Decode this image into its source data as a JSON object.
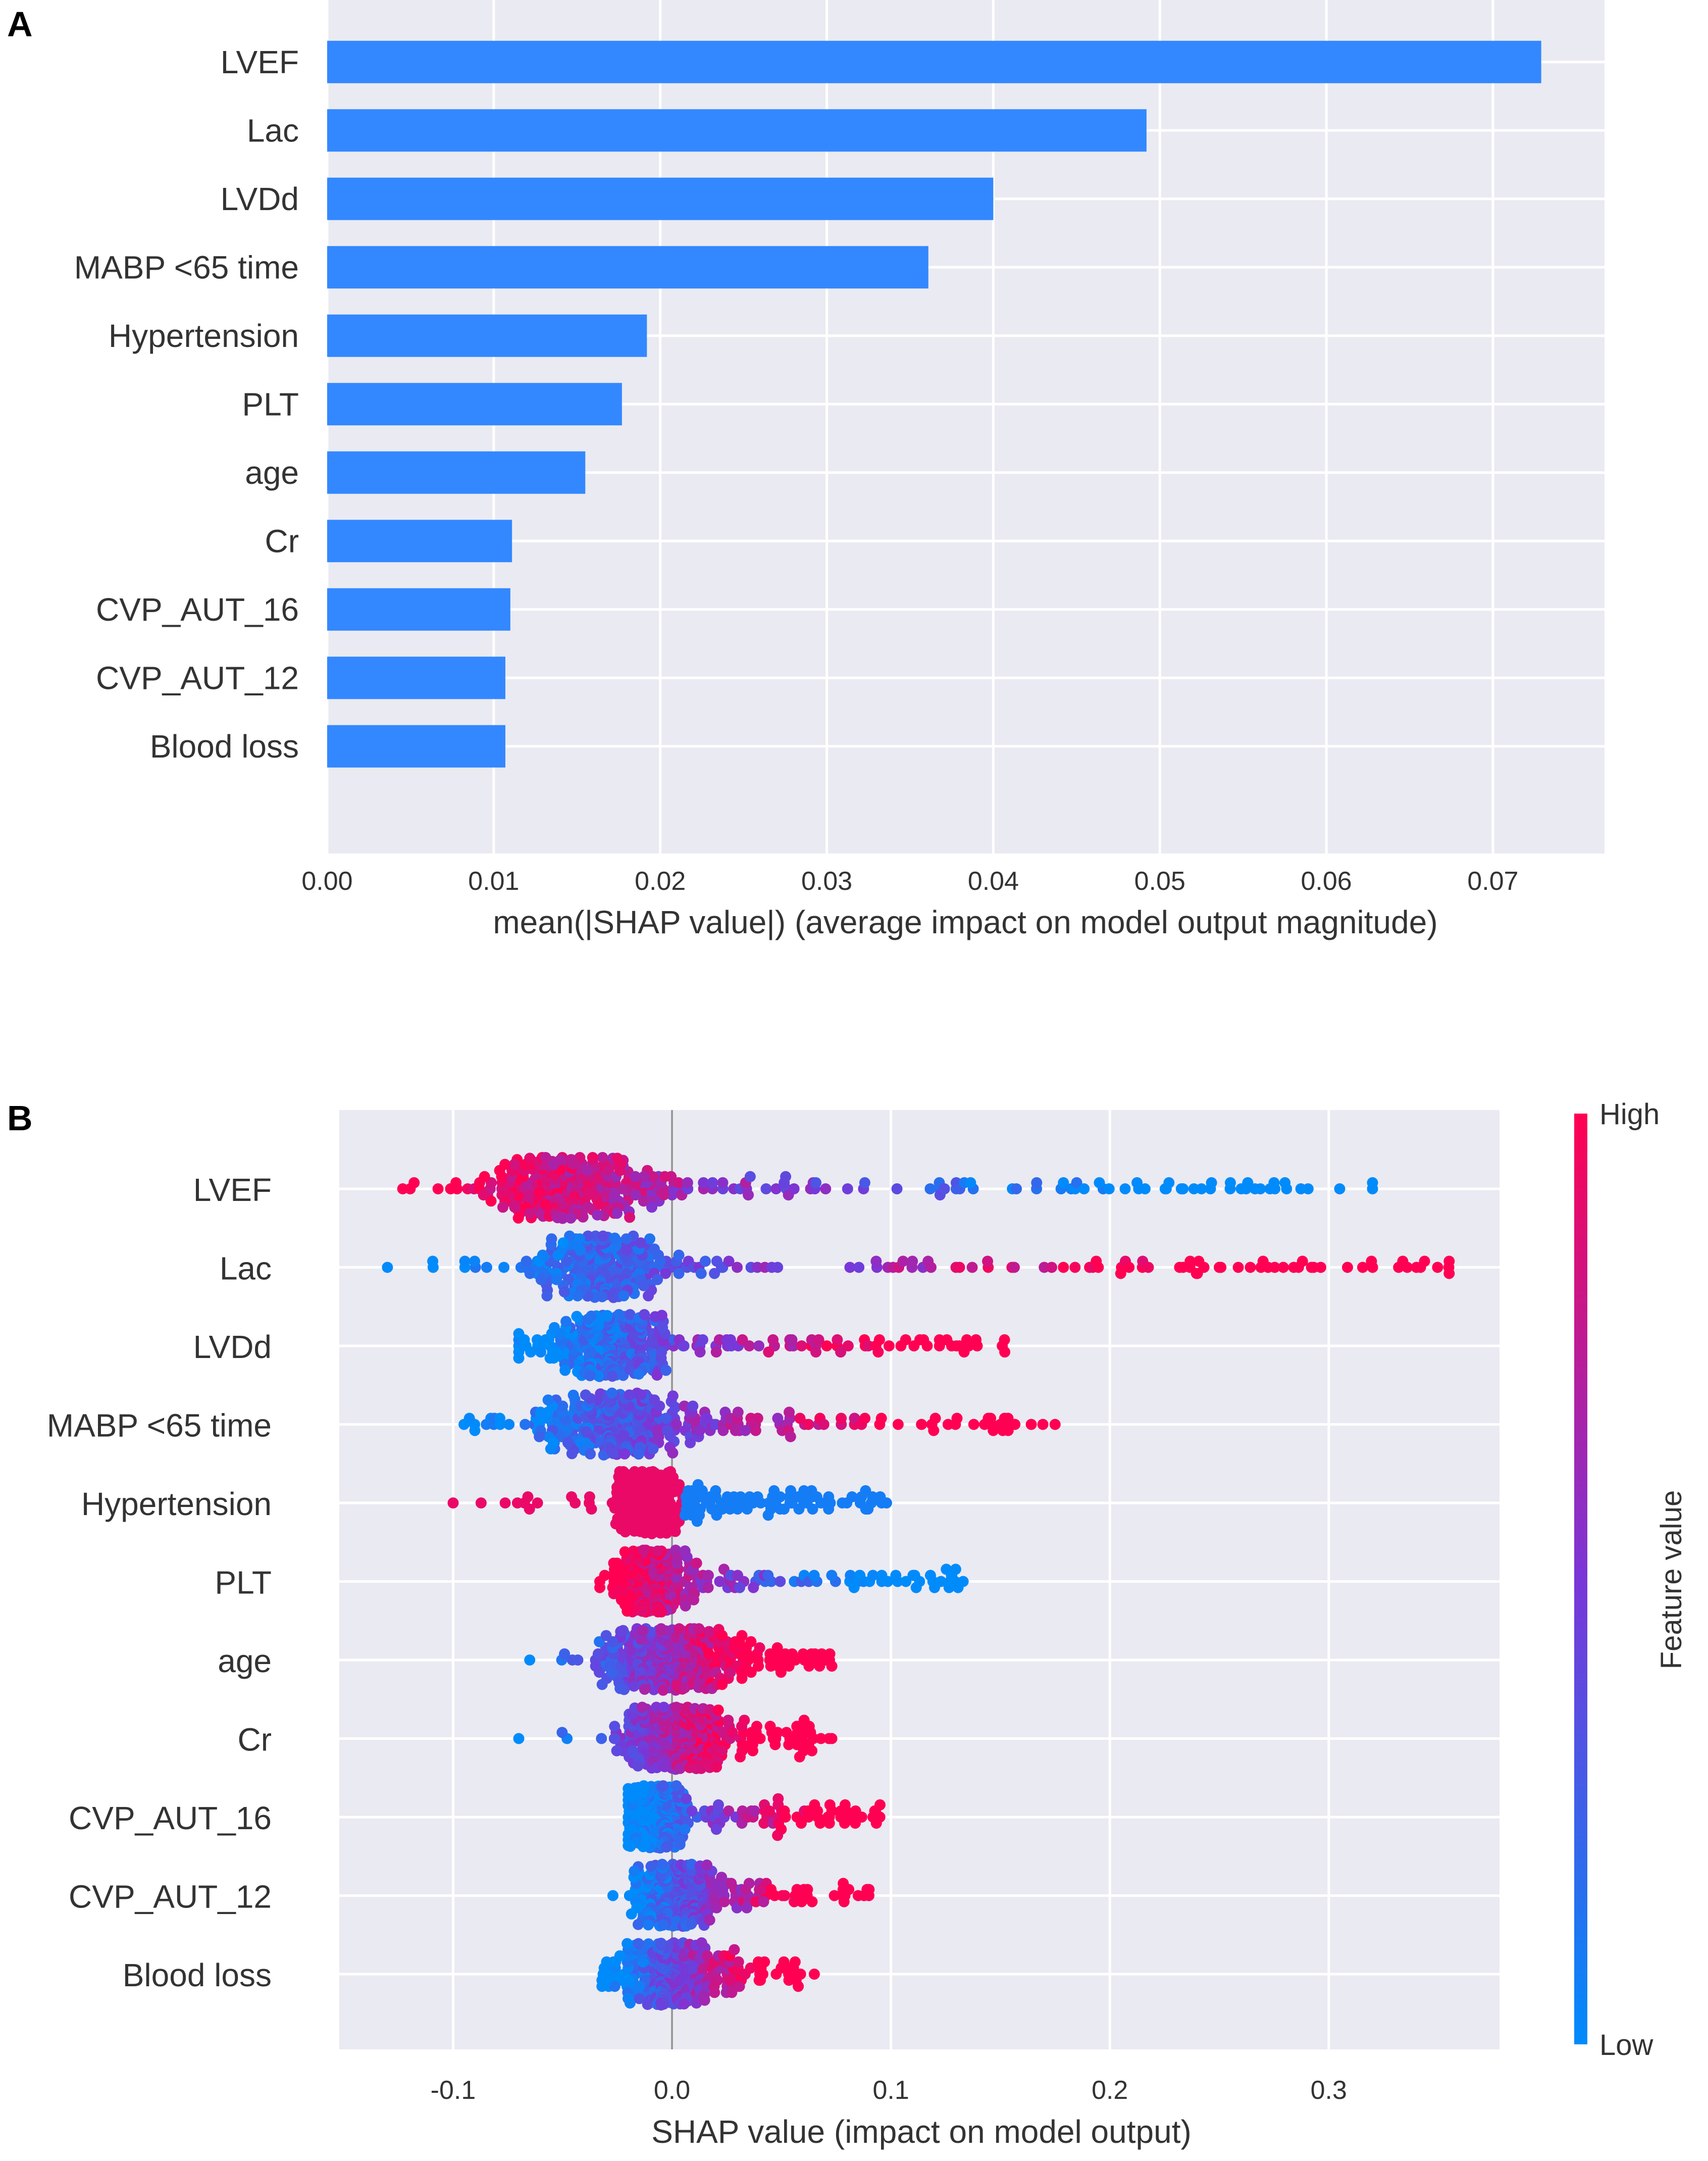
{
  "chart_data": [
    {
      "panel": "A",
      "type": "bar",
      "orientation": "horizontal",
      "categories": [
        "LVEF",
        "Lac",
        "LVDd",
        "MABP <65 time",
        "Hypertension",
        "PLT",
        "age",
        "Cr",
        "CVP_AUT_16",
        "CVP_AUT_12",
        "Blood loss"
      ],
      "values": [
        0.0729,
        0.0492,
        0.04,
        0.0361,
        0.0192,
        0.0177,
        0.0155,
        0.0111,
        0.011,
        0.0107,
        0.0107
      ],
      "xlabel": "mean(|SHAP value|) (average impact on model output magnitude)",
      "ylabel": "",
      "xlim": [
        0,
        0.0767
      ],
      "xticks": [
        "0.00",
        "0.01",
        "0.02",
        "0.03",
        "0.04",
        "0.05",
        "0.06",
        "0.07"
      ],
      "bar_color": "#3388ff",
      "grid": true
    },
    {
      "panel": "B",
      "type": "scatter",
      "subtype": "shap-beeswarm",
      "categories": [
        "LVEF",
        "Lac",
        "LVDd",
        "MABP <65 time",
        "Hypertension",
        "PLT",
        "age",
        "Cr",
        "CVP_AUT_16",
        "CVP_AUT_12",
        "Blood loss"
      ],
      "series": [
        {
          "name": "LVEF",
          "min": -0.123,
          "max": 0.32,
          "peak": -0.05,
          "spread": 0.02,
          "low_side": "right",
          "mode": "negcorr-far",
          "tail_points": [
            0.305,
            0.32,
            0.28,
            0.275,
            0.26
          ]
        },
        {
          "name": "Lac",
          "min": -0.13,
          "max": 0.355,
          "peak": -0.035,
          "spread": 0.015,
          "low_side": "left",
          "mode": "poscorr-far",
          "tail_points": [
            0.355,
            0.288,
            0.27,
            0.25,
            0.24,
            0.215
          ]
        },
        {
          "name": "LVDd",
          "min": -0.07,
          "max": 0.152,
          "peak": -0.03,
          "spread": 0.015,
          "low_side": "left",
          "mode": "poscorr"
        },
        {
          "name": "MABP <65 time",
          "min": -0.095,
          "max": 0.175,
          "peak": -0.03,
          "spread": 0.02,
          "low_side": "left",
          "mode": "poscorr"
        },
        {
          "name": "Hypertension",
          "min": -0.1,
          "max": 0.098,
          "peak": -0.01,
          "spread": 0.008,
          "low_side": "right",
          "mode": "binary-neg"
        },
        {
          "name": "PLT",
          "min": -0.033,
          "max": 0.133,
          "peak": -0.012,
          "spread": 0.008,
          "low_side": "right",
          "mode": "negcorr"
        },
        {
          "name": "age",
          "min": -0.065,
          "max": 0.073,
          "peak": -0.005,
          "spread": 0.015,
          "low_side": "left",
          "mode": "poscorr"
        },
        {
          "name": "Cr",
          "min": -0.07,
          "max": 0.073,
          "peak": 0.0,
          "spread": 0.012,
          "low_side": "left",
          "mode": "poscorr"
        },
        {
          "name": "CVP_AUT_16",
          "min": -0.02,
          "max": 0.095,
          "peak": -0.008,
          "spread": 0.006,
          "low_side": "left",
          "mode": "poscorr"
        },
        {
          "name": "CVP_AUT_12",
          "min": -0.027,
          "max": 0.09,
          "peak": 0.0,
          "spread": 0.008,
          "low_side": "left",
          "mode": "poscorr"
        },
        {
          "name": "Blood loss",
          "min": -0.032,
          "max": 0.065,
          "peak": -0.005,
          "spread": 0.01,
          "low_side": "left",
          "mode": "poscorr"
        }
      ],
      "xlabel": "SHAP value (impact on model output)",
      "ylabel": "",
      "xlim": [
        -0.152,
        0.378
      ],
      "xticks": [
        "-0.1",
        "0.0",
        "0.1",
        "0.2",
        "0.3"
      ],
      "colorbar": {
        "title": "Feature value",
        "high_label": "High",
        "low_label": "Low",
        "high_color": "#ff0052",
        "low_color": "#008bfb"
      },
      "grid": true
    }
  ],
  "panel_labels": {
    "a": "A",
    "b": "B"
  }
}
